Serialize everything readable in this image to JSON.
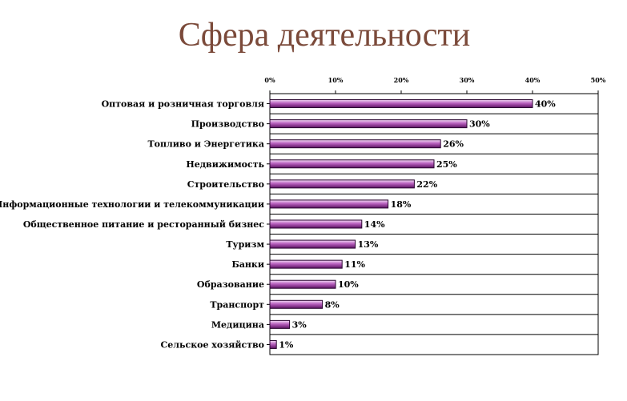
{
  "chart_data": {
    "type": "bar",
    "orientation": "horizontal",
    "title": "Сфера деятельности",
    "categories": [
      "Оптовая и розничная торговля",
      "Производство",
      "Топливо и Энергетика",
      "Недвижимость",
      "Строительство",
      "Информационные технологии и телекоммуникации",
      "Общественное питание и ресторанный бизнес",
      "Туризм",
      "Банки",
      "Образование",
      "Транспорт",
      "Медицина",
      "Сельское хозяйство"
    ],
    "values": [
      40,
      30,
      26,
      25,
      22,
      18,
      14,
      13,
      11,
      10,
      8,
      3,
      1
    ],
    "value_labels": [
      "40%",
      "30%",
      "26%",
      "25%",
      "22%",
      "18%",
      "14%",
      "13%",
      "11%",
      "10%",
      "8%",
      "3%",
      "1%"
    ],
    "x_ticks": [
      "0%",
      "10%",
      "20%",
      "30%",
      "40%",
      "50%"
    ],
    "xlim": [
      0,
      50
    ],
    "axis_position": "top",
    "grid": "horizontal",
    "legend": "none",
    "colors": {
      "bar_light": "#f3dcf5",
      "bar_mid": "#b85fbe",
      "bar_dark": "#5a1260",
      "bar_edge": "#2a0630",
      "title": "#7b4a3a"
    }
  }
}
